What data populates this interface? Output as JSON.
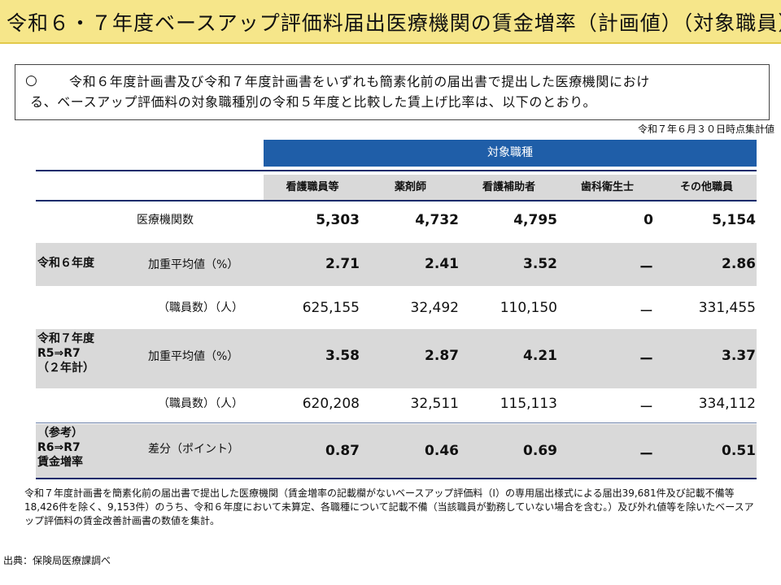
{
  "title": "令和６・７年度ベースアップ評価料届出医療機関の賃金増率（計画値）（対象職員）",
  "summary": {
    "mark": "○",
    "line1": "令和６年度計画書及び令和７年度計画書をいずれも簡素化前の届出書で提出した医療機関におけ",
    "line2": "る、ベースアップ評価料の対象職種別の令和５年度と比較した賃上げ比率は、以下のとおり。"
  },
  "as_of": "令和７年６月３０日時点集計値",
  "table": {
    "group_header": "対象職種",
    "columns": [
      "看護職員等",
      "薬剤師",
      "看護補助者",
      "歯科衛生士",
      "その他職員"
    ],
    "rows": [
      {
        "section": "",
        "label": "医療機関数",
        "values": [
          "5,303",
          "4,732",
          "4,795",
          "0",
          "5,154"
        ]
      },
      {
        "section": "令和６年度",
        "label": "加重平均値（%）",
        "values": [
          "2.71",
          "2.41",
          "3.52",
          "ー",
          "2.86"
        ]
      },
      {
        "section": "",
        "label": "（職員数）（人）",
        "values": [
          "625,155",
          "32,492",
          "110,150",
          "ー",
          "331,455"
        ]
      },
      {
        "section_lines": [
          "令和７年度",
          "R5⇒R7",
          "（２年計）"
        ],
        "label": "加重平均値（%）",
        "values": [
          "3.58",
          "2.87",
          "4.21",
          "ー",
          "3.37"
        ]
      },
      {
        "section": "",
        "label": "（職員数）（人）",
        "values": [
          "620,208",
          "32,511",
          "115,113",
          "ー",
          "334,112"
        ]
      },
      {
        "section_lines": [
          "（参考）",
          "R6⇒R7",
          "賃金増率"
        ],
        "label": "差分（ポイント）",
        "values": [
          "0.87",
          "0.46",
          "0.69",
          "ー",
          "0.51"
        ]
      }
    ]
  },
  "footnote": "令和７年度計画書を簡素化前の届出書で提出した医療機関（賃金増率の記載欄がないベースアップ評価料（Ⅰ）の専用届出様式による届出39,681件及び記載不備等18,426件を除く、9,153件）のうち、令和６年度において未算定、各職種について記載不備（当該職員が勤務していない場合を含む。）及び外れ値等を除いたベースアップ評価料の賃金改善計画書の数値を集計。",
  "source": "出典：保険局医療課調べ"
}
